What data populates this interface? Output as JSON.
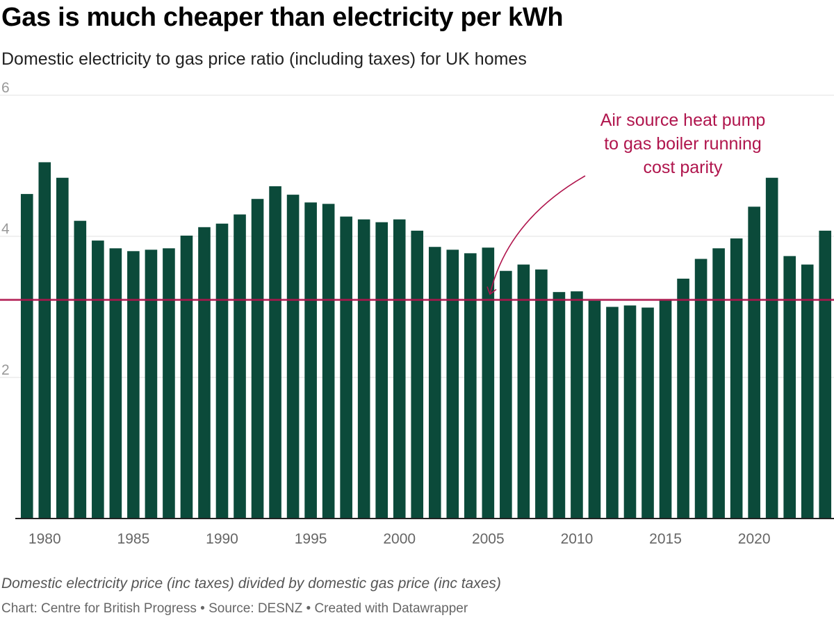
{
  "header": {
    "title": "Gas is much cheaper than electricity per kWh",
    "subtitle": "Domestic electricity to gas price ratio (including taxes) for UK homes"
  },
  "notes": "Domestic electricity price (inc taxes) divided by domestic gas price (inc taxes)",
  "footer": "Chart: Centre for British Progress • Source: DESNZ • Created with Datawrapper",
  "annotation": {
    "lines": [
      "Air source heat pump",
      "to gas boiler running",
      "cost parity"
    ]
  },
  "colors": {
    "bar": "#0b4a3a",
    "reference_line": "#b0154d",
    "gridline": "#e0e0e0",
    "tick_label": "#999999"
  },
  "chart_data": {
    "type": "bar",
    "x": [
      1979,
      1980,
      1981,
      1982,
      1983,
      1984,
      1985,
      1986,
      1987,
      1988,
      1989,
      1990,
      1991,
      1992,
      1993,
      1994,
      1995,
      1996,
      1997,
      1998,
      1999,
      2000,
      2001,
      2002,
      2003,
      2004,
      2005,
      2006,
      2007,
      2008,
      2009,
      2010,
      2011,
      2012,
      2013,
      2014,
      2015,
      2016,
      2017,
      2018,
      2019,
      2020,
      2021,
      2022,
      2023,
      2024
    ],
    "values": [
      4.6,
      5.05,
      4.83,
      4.22,
      3.94,
      3.83,
      3.79,
      3.81,
      3.83,
      4.01,
      4.13,
      4.18,
      4.31,
      4.53,
      4.71,
      4.59,
      4.48,
      4.46,
      4.28,
      4.24,
      4.2,
      4.24,
      4.08,
      3.85,
      3.81,
      3.76,
      3.84,
      3.51,
      3.6,
      3.53,
      3.21,
      3.22,
      3.09,
      3.0,
      3.02,
      2.99,
      3.1,
      3.4,
      3.68,
      3.83,
      3.97,
      4.42,
      4.83,
      3.72,
      3.6,
      4.08
    ],
    "x_ticks": [
      "1980",
      "1985",
      "1990",
      "1995",
      "2000",
      "2005",
      "2010",
      "2015",
      "2020"
    ],
    "y_ticks": [
      "2",
      "4",
      "6"
    ],
    "ylim": [
      0,
      6
    ],
    "reference_line": {
      "y": 3.1,
      "label": "Air source heat pump to gas boiler running cost parity"
    },
    "grid": true,
    "xlabel": "",
    "ylabel": ""
  }
}
